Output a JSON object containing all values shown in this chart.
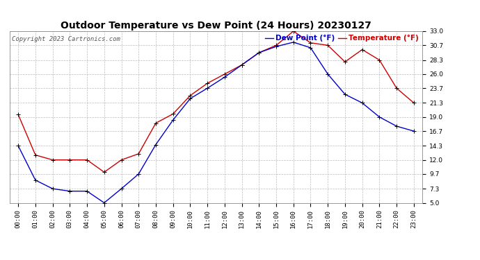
{
  "title": "Outdoor Temperature vs Dew Point (24 Hours) 20230127",
  "copyright": "Copyright 2023 Cartronics.com",
  "legend_dew": "Dew Point (°F)",
  "legend_temp": "Temperature (°F)",
  "hours": [
    "00:00",
    "01:00",
    "02:00",
    "03:00",
    "04:00",
    "05:00",
    "06:00",
    "07:00",
    "08:00",
    "09:00",
    "10:00",
    "11:00",
    "12:00",
    "13:00",
    "14:00",
    "15:00",
    "16:00",
    "17:00",
    "18:00",
    "19:00",
    "20:00",
    "21:00",
    "22:00",
    "23:00"
  ],
  "temperature": [
    19.4,
    12.8,
    12.0,
    12.0,
    12.0,
    10.0,
    12.0,
    13.0,
    18.0,
    19.5,
    22.5,
    24.5,
    26.0,
    27.5,
    29.5,
    30.7,
    33.0,
    31.1,
    30.7,
    28.0,
    30.0,
    28.3,
    23.7,
    21.3
  ],
  "dew_point": [
    14.3,
    8.7,
    7.3,
    6.9,
    6.9,
    5.0,
    7.3,
    9.7,
    14.5,
    18.5,
    22.0,
    23.7,
    25.5,
    27.5,
    29.5,
    30.5,
    31.2,
    30.3,
    26.0,
    22.7,
    21.3,
    19.0,
    17.5,
    16.7
  ],
  "ylim_min": 5.0,
  "ylim_max": 33.0,
  "yticks": [
    5.0,
    7.3,
    9.7,
    12.0,
    14.3,
    16.7,
    19.0,
    21.3,
    23.7,
    26.0,
    28.3,
    30.7,
    33.0
  ],
  "temp_color": "#cc0000",
  "dew_color": "#0000cc",
  "grid_color": "#bbbbbb",
  "bg_color": "#ffffff",
  "title_fontsize": 10,
  "copyright_fontsize": 6.5,
  "legend_fontsize": 7.5,
  "tick_fontsize": 6.5
}
